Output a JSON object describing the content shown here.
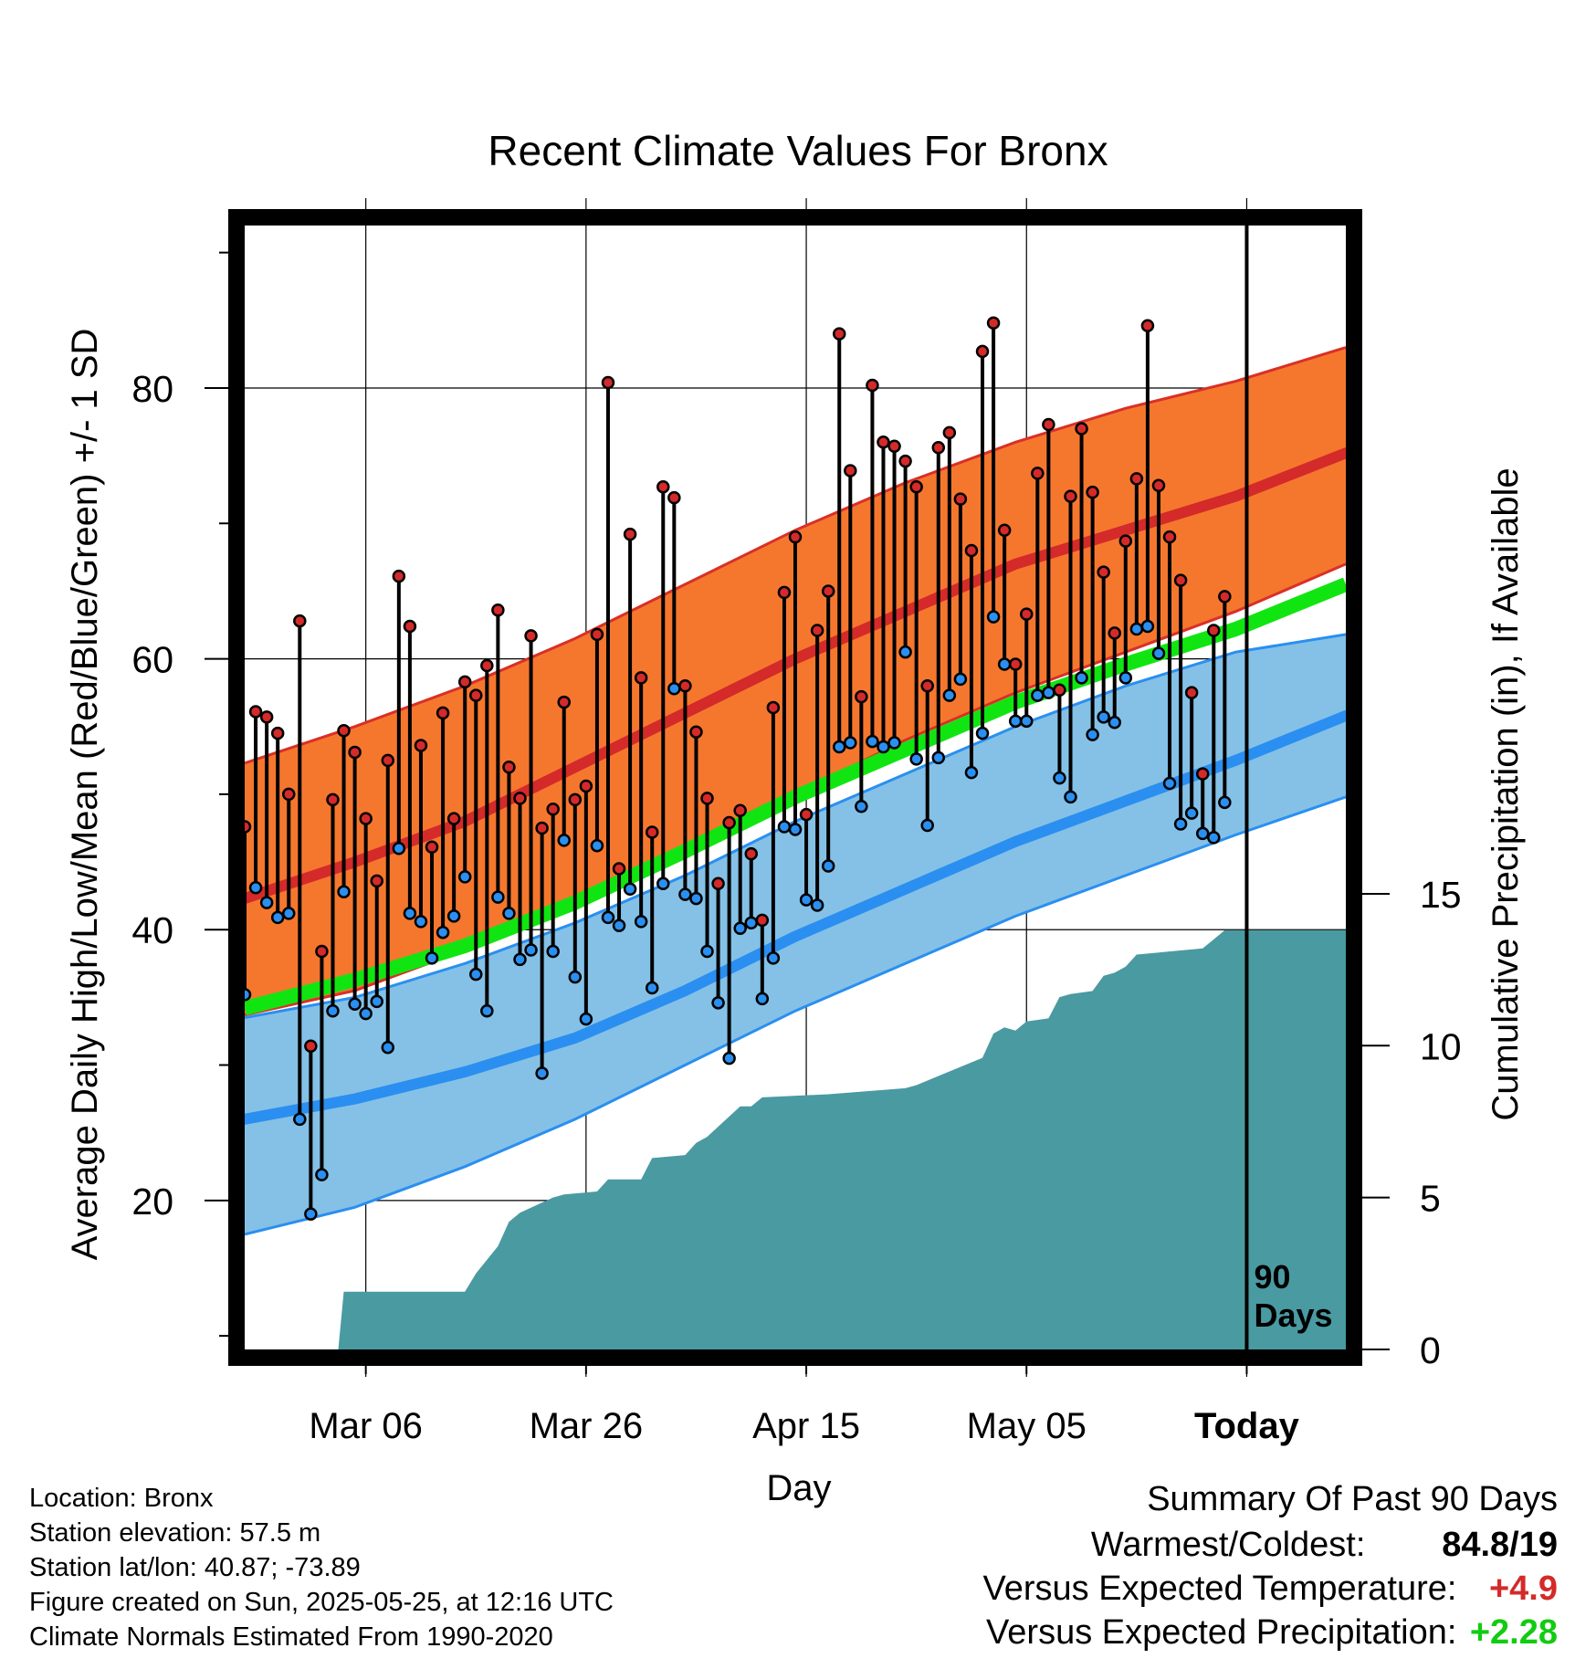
{
  "chart_data": {
    "type": "line",
    "title": "Recent Climate Values For Bronx",
    "xlabel": "Day",
    "ylabel": "Average Daily High/Low/Mean (Red/Blue/Green) +/- 1 SD",
    "y2label": "Cumulative Precipitation (in), If Available",
    "xlim": [
      0,
      100
    ],
    "ylim": [
      9,
      92
    ],
    "y2lim": [
      0,
      37
    ],
    "y_ticks": [
      20,
      40,
      60,
      80
    ],
    "y2_ticks": [
      0,
      5,
      10,
      15
    ],
    "x_ticks": [
      {
        "day": 11,
        "label": "Mar 06"
      },
      {
        "day": 31,
        "label": "Mar 26"
      },
      {
        "day": 51,
        "label": "Apr 15"
      },
      {
        "day": 71,
        "label": "May 05"
      },
      {
        "day": 91,
        "label": "Today"
      }
    ],
    "today_day": 91,
    "today_annotation": [
      "90",
      "Days"
    ],
    "grid": true,
    "normal_high": {
      "x": [
        0,
        10,
        20,
        30,
        40,
        50,
        60,
        70,
        80,
        90,
        100
      ],
      "mean": [
        42.3,
        45,
        48,
        52,
        56,
        60,
        63.5,
        67,
        69.5,
        72,
        75.2
      ],
      "upper": [
        52.3,
        55,
        58,
        61.5,
        65.5,
        69.5,
        73,
        76,
        78.5,
        80.5,
        83
      ],
      "lower": [
        33.7,
        35.5,
        38.5,
        42,
        46,
        50,
        54,
        57.5,
        60.5,
        63.5,
        67
      ]
    },
    "normal_low": {
      "x": [
        0,
        10,
        20,
        30,
        40,
        50,
        60,
        70,
        80,
        90,
        100
      ],
      "mean": [
        26,
        27.5,
        29.5,
        32,
        35.5,
        39.5,
        43,
        46.5,
        49.5,
        52.5,
        55.8
      ],
      "upper": [
        33.5,
        35,
        37.5,
        40.5,
        44,
        48,
        51.5,
        55,
        58,
        60.5,
        61.8
      ],
      "lower": [
        17.5,
        19.5,
        22.5,
        26,
        30,
        34,
        37.5,
        41,
        44,
        47,
        49.8
      ]
    },
    "normal_mean": {
      "x": [
        0,
        10,
        20,
        30,
        40,
        50,
        60,
        70,
        80,
        90,
        100
      ],
      "values": [
        34.2,
        36.3,
        38.8,
        42,
        45.8,
        49.8,
        53.3,
        56.8,
        59.6,
        62.2,
        65.5
      ]
    },
    "daily": {
      "day": [
        0,
        1,
        2,
        3,
        4,
        5,
        6,
        7,
        8,
        9,
        10,
        11,
        12,
        13,
        14,
        15,
        16,
        17,
        18,
        19,
        20,
        21,
        22,
        23,
        24,
        25,
        26,
        27,
        28,
        29,
        30,
        31,
        32,
        33,
        34,
        35,
        36,
        37,
        38,
        39,
        40,
        41,
        42,
        43,
        44,
        45,
        46,
        47,
        48,
        49,
        50,
        51,
        52,
        53,
        54,
        55,
        56,
        57,
        58,
        59,
        60,
        61,
        62,
        63,
        64,
        65,
        66,
        67,
        68,
        69,
        70,
        71,
        72,
        73,
        74,
        75,
        76,
        77,
        78,
        79,
        80,
        81,
        82,
        83,
        84,
        85,
        86,
        87,
        88,
        89,
        90
      ],
      "high": [
        47.6,
        56.1,
        55.7,
        54.5,
        50,
        62.8,
        31.4,
        38.4,
        49.6,
        54.7,
        53.1,
        48.2,
        43.6,
        52.5,
        66.1,
        62.4,
        53.6,
        46.1,
        56,
        48.2,
        58.3,
        57.3,
        59.5,
        63.6,
        52,
        49.7,
        61.7,
        47.5,
        48.9,
        56.8,
        49.6,
        50.6,
        61.8,
        80.4,
        44.5,
        69.2,
        58.6,
        47.2,
        72.7,
        71.9,
        58,
        54.6,
        49.7,
        43.4,
        47.9,
        48.8,
        45.6,
        40.7,
        56.4,
        64.9,
        69,
        48.5,
        62.1,
        65,
        84,
        73.9,
        57.2,
        80.2,
        76,
        75.7,
        74.6,
        72.7,
        58,
        75.6,
        76.7,
        71.8,
        68,
        82.7,
        84.8,
        69.5,
        59.6,
        63.3,
        73.7,
        77.3,
        57.7,
        72,
        77,
        72.3,
        66.4,
        61.9,
        68.7,
        73.3,
        84.6,
        72.8,
        69,
        65.8,
        57.5,
        51.5,
        62.1,
        64.6
      ],
      "low": [
        35.2,
        43.1,
        42,
        40.9,
        41.2,
        26,
        19,
        21.9,
        34,
        42.8,
        34.5,
        33.8,
        34.7,
        31.3,
        46,
        41.2,
        40.6,
        37.9,
        39.8,
        41,
        43.9,
        36.7,
        34,
        42.4,
        41.2,
        37.8,
        38.5,
        29.4,
        38.4,
        46.6,
        36.5,
        33.4,
        46.2,
        40.9,
        40.3,
        43,
        40.6,
        35.7,
        43.4,
        57.8,
        42.6,
        42.3,
        38.4,
        34.6,
        30.5,
        40.1,
        40.5,
        34.9,
        37.9,
        47.6,
        47.4,
        42.2,
        41.8,
        44.7,
        53.5,
        53.8,
        49.1,
        53.9,
        53.5,
        53.8,
        60.5,
        52.6,
        47.7,
        52.7,
        57.3,
        58.5,
        51.6,
        54.5,
        63.1,
        59.6,
        55.4,
        55.4,
        57.3,
        57.5,
        51.2,
        49.8,
        58.6,
        54.4,
        55.7,
        55.3,
        58.6,
        62.2,
        62.4,
        60.4,
        50.8,
        47.8,
        48.6,
        47.1,
        46.8,
        49.4
      ]
    },
    "precip_cumulative": {
      "day": [
        0,
        8.5,
        9,
        20,
        21,
        23,
        24,
        25,
        28,
        29,
        32,
        33,
        36,
        37,
        40,
        41,
        42,
        45,
        46,
        47,
        53,
        60,
        61,
        67,
        68,
        69,
        70,
        71,
        73,
        74,
        75,
        77,
        78,
        79,
        80,
        81,
        87,
        88,
        89,
        100
      ],
      "values": [
        0,
        0,
        1.9,
        1.9,
        2.5,
        3.4,
        4.2,
        4.5,
        5.0,
        5.1,
        5.2,
        5.6,
        5.6,
        6.3,
        6.4,
        6.8,
        7.0,
        8.0,
        8.0,
        8.3,
        8.4,
        8.6,
        8.7,
        9.6,
        10.4,
        10.6,
        10.5,
        10.8,
        10.9,
        11.6,
        11.7,
        11.8,
        12.3,
        12.4,
        12.6,
        13.0,
        13.2,
        13.5,
        13.8,
        13.8
      ]
    },
    "colors": {
      "high_band": "#f5772e",
      "high_edge": "#d93027",
      "high_mean": "#d42a2a",
      "low_band": "#85c1e6",
      "low_edge": "#2a8ff0",
      "low_mean": "#2a8ff0",
      "mean_normal": "#11e511",
      "precip": "#4a9aa2",
      "high_dot": "#d42a2a",
      "low_dot": "#2a8ff0",
      "stem": "#000000"
    }
  },
  "info": {
    "location": "Location: Bronx",
    "elevation": "Station elevation: 57.5 m",
    "latlon": "Station lat/lon: 40.87; -73.89",
    "created": "Figure created on Sun, 2025-05-25, at 12:16 UTC",
    "normals": "Climate Normals Estimated From 1990-2020"
  },
  "summary": {
    "title": "Summary Of Past 90 Days",
    "warmest_label": "Warmest/Coldest:",
    "warmest_value": "84.8/19",
    "temp_label": "Versus Expected Temperature:",
    "temp_value": "+4.9",
    "temp_color": "#d42a2a",
    "precip_label": "Versus Expected Precipitation:",
    "precip_value": "+2.28",
    "precip_color": "#11cc11"
  }
}
